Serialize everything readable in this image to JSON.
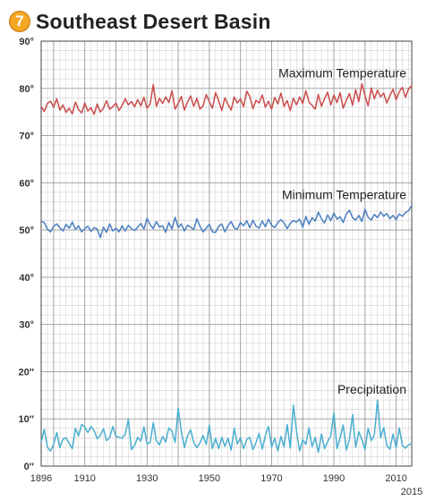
{
  "header": {
    "badge": "7",
    "title": "Southeast Desert Basin"
  },
  "chart_data": {
    "type": "line",
    "title": "Southeast Desert Basin",
    "x_range": [
      1896,
      2015
    ],
    "y_range": [
      0,
      90
    ],
    "grid": true,
    "y_ticks": [
      {
        "value": 0,
        "label": "0″"
      },
      {
        "value": 10,
        "label": "10″"
      },
      {
        "value": 20,
        "label": "20″"
      },
      {
        "value": 30,
        "label": "30°"
      },
      {
        "value": 40,
        "label": "40°"
      },
      {
        "value": 50,
        "label": "50°"
      },
      {
        "value": 60,
        "label": "60°"
      },
      {
        "value": 70,
        "label": "70°"
      },
      {
        "value": 80,
        "label": "80°"
      },
      {
        "value": 90,
        "label": "90°"
      }
    ],
    "x_ticks": [
      {
        "value": 1896,
        "label": "1896",
        "row": 0
      },
      {
        "value": 1910,
        "label": "1910",
        "row": 0
      },
      {
        "value": 1930,
        "label": "1930",
        "row": 0
      },
      {
        "value": 1950,
        "label": "1950",
        "row": 0
      },
      {
        "value": 1970,
        "label": "1970",
        "row": 0
      },
      {
        "value": 1990,
        "label": "1990",
        "row": 0
      },
      {
        "value": 2010,
        "label": "2010",
        "row": 0
      },
      {
        "value": 2015,
        "label": "2015",
        "row": 1
      }
    ],
    "series": [
      {
        "name": "Maximum Temperature",
        "color": "#cc4b4b",
        "values": [
          76.2,
          75.1,
          76.8,
          77.3,
          76.0,
          77.8,
          75.4,
          76.5,
          74.9,
          75.8,
          74.6,
          77.1,
          75.5,
          74.8,
          76.9,
          75.2,
          75.9,
          74.5,
          76.7,
          75.0,
          75.8,
          77.4,
          75.6,
          76.1,
          76.9,
          75.3,
          76.4,
          77.8,
          76.5,
          77.2,
          76.1,
          77.6,
          76.3,
          78.1,
          75.8,
          76.7,
          80.8,
          76.2,
          77.9,
          76.8,
          78.2,
          77.0,
          79.5,
          75.6,
          76.8,
          78.3,
          75.4,
          77.1,
          78.4,
          76.2,
          77.9,
          75.6,
          76.3,
          78.7,
          77.2,
          75.8,
          79.1,
          77.4,
          75.3,
          78.0,
          76.6,
          75.4,
          78.2,
          76.9,
          77.8,
          76.1,
          79.4,
          78.3,
          75.7,
          77.5,
          76.9,
          78.6,
          76.0,
          77.3,
          75.6,
          78.1,
          76.7,
          79.0,
          76.2,
          77.4,
          75.3,
          77.9,
          76.5,
          78.2,
          76.8,
          79.5,
          77.1,
          76.4,
          75.6,
          78.7,
          76.2,
          77.8,
          79.2,
          76.5,
          78.6,
          77.0,
          79.1,
          75.8,
          77.5,
          78.9,
          76.4,
          79.7,
          77.2,
          81.0,
          78.4,
          76.3,
          80.1,
          77.8,
          79.6,
          78.2,
          79.0,
          76.9,
          78.5,
          79.8,
          77.6,
          79.3,
          80.2,
          78.1,
          79.9,
          80.6
        ]
      },
      {
        "name": "Minimum Temperature",
        "color": "#4a7fc1",
        "values": [
          51.8,
          51.6,
          50.2,
          49.6,
          50.8,
          51.3,
          50.5,
          49.8,
          51.2,
          50.4,
          51.7,
          50.1,
          50.9,
          49.6,
          50.3,
          50.8,
          49.7,
          50.5,
          50.2,
          48.4,
          50.6,
          49.5,
          51.3,
          49.8,
          50.4,
          49.6,
          50.9,
          49.8,
          51.0,
          50.3,
          49.9,
          50.6,
          51.4,
          50.2,
          52.5,
          51.1,
          50.3,
          51.8,
          50.6,
          50.9,
          49.5,
          51.6,
          50.2,
          52.7,
          50.5,
          51.3,
          49.8,
          51.0,
          50.6,
          50.1,
          52.4,
          50.8,
          49.6,
          50.4,
          51.2,
          49.6,
          49.5,
          50.8,
          51.3,
          49.6,
          50.9,
          51.8,
          50.4,
          50.2,
          51.6,
          50.9,
          52.0,
          50.5,
          52.1,
          50.8,
          50.4,
          51.9,
          50.7,
          52.3,
          51.0,
          50.5,
          51.6,
          52.2,
          51.5,
          50.3,
          51.4,
          52.0,
          51.7,
          52.3,
          50.6,
          52.9,
          51.2,
          52.6,
          51.9,
          53.8,
          52.4,
          51.5,
          53.2,
          52.0,
          53.6,
          52.3,
          52.8,
          51.6,
          53.4,
          54.2,
          52.6,
          52.1,
          53.1,
          51.8,
          54.4,
          52.7,
          52.1,
          53.3,
          52.6,
          53.8,
          52.9,
          53.5,
          52.4,
          53.1,
          52.2,
          53.4,
          52.9,
          53.7,
          54.1,
          55.2
        ]
      },
      {
        "name": "Precipitation",
        "color": "#4aaed0",
        "values": [
          5.1,
          7.8,
          4.0,
          3.2,
          4.6,
          7.1,
          3.9,
          5.7,
          6.0,
          4.8,
          3.7,
          8.0,
          6.4,
          8.8,
          8.3,
          7.1,
          8.4,
          7.5,
          5.8,
          6.5,
          7.9,
          5.4,
          6.0,
          8.4,
          6.3,
          6.1,
          5.9,
          6.8,
          9.9,
          3.5,
          4.4,
          6.1,
          5.3,
          8.3,
          4.7,
          5.0,
          9.2,
          5.4,
          4.5,
          6.3,
          5.1,
          8.1,
          7.4,
          5.0,
          12.3,
          7.4,
          3.9,
          6.4,
          7.7,
          5.0,
          3.9,
          4.9,
          6.5,
          4.6,
          8.7,
          3.7,
          5.9,
          3.7,
          6.1,
          4.2,
          5.9,
          3.4,
          8.0,
          4.7,
          6.0,
          3.7,
          5.6,
          6.1,
          3.5,
          5.0,
          6.9,
          3.6,
          6.5,
          8.4,
          4.0,
          5.9,
          3.2,
          6.3,
          4.1,
          8.8,
          3.8,
          12.9,
          7.4,
          3.2,
          5.6,
          4.6,
          8.1,
          4.1,
          6.1,
          2.9,
          6.8,
          3.7,
          5.2,
          6.4,
          11.3,
          3.7,
          6.0,
          8.7,
          3.4,
          5.7,
          10.9,
          4.0,
          7.3,
          5.6,
          3.5,
          8.0,
          5.4,
          6.6,
          14.0,
          6.0,
          8.2,
          4.3,
          3.6,
          6.8,
          3.9,
          8.1,
          4.4,
          3.8,
          4.5,
          4.8
        ]
      }
    ]
  }
}
